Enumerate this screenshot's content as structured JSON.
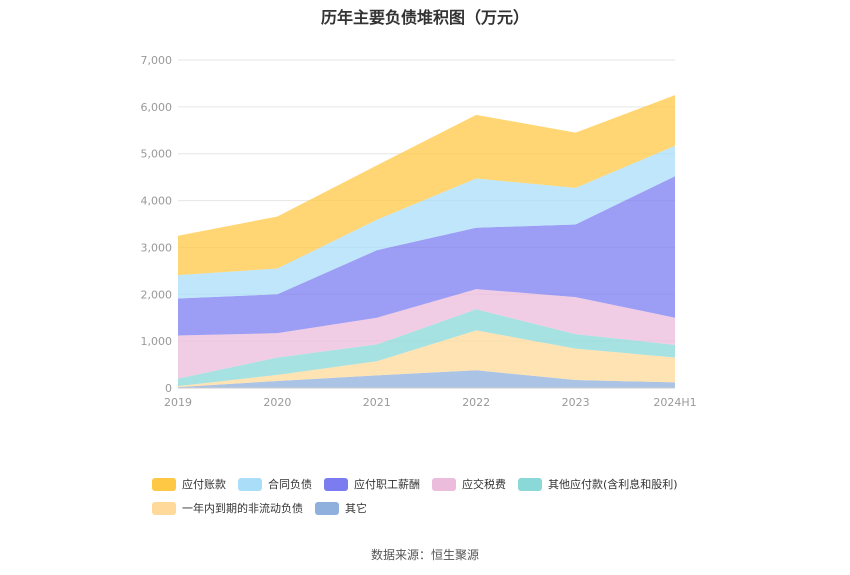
{
  "chart_data": {
    "type": "area",
    "stacked": true,
    "title": "历年主要负债堆积图（万元）",
    "categories": [
      "2019",
      "2020",
      "2021",
      "2022",
      "2023",
      "2024H1"
    ],
    "y_ticks": [
      "0",
      "1,000",
      "2,000",
      "3,000",
      "4,000",
      "5,000",
      "6,000",
      "7,000"
    ],
    "ylim": [
      0,
      7000
    ],
    "series": [
      {
        "name": "其它",
        "color": "#8fb0dc",
        "values": [
          20,
          150,
          270,
          380,
          170,
          120
        ]
      },
      {
        "name": "一年内到期的非流动负债",
        "color": "#ffd99a",
        "values": [
          20,
          130,
          300,
          850,
          670,
          530
        ]
      },
      {
        "name": "其他应付款(含利息和股利)",
        "color": "#8ad8d8",
        "values": [
          160,
          370,
          360,
          450,
          310,
          270
        ]
      },
      {
        "name": "应交税费",
        "color": "#ecbcdc",
        "values": [
          920,
          520,
          570,
          430,
          790,
          580
        ]
      },
      {
        "name": "应付职工薪酬",
        "color": "#7b7cf0",
        "values": [
          790,
          830,
          1440,
          1310,
          1550,
          3020
        ]
      },
      {
        "name": "合同负债",
        "color": "#aaddf8",
        "values": [
          500,
          550,
          650,
          1050,
          780,
          650
        ]
      },
      {
        "name": "应付账款",
        "color": "#ffc844",
        "values": [
          840,
          1110,
          1160,
          1360,
          1180,
          1080
        ]
      }
    ],
    "legend_order": [
      [
        "应付账款",
        "合同负债",
        "应付职工薪酬",
        "应交税费",
        "其他应付款(含利息和股利)"
      ],
      [
        "一年内到期的非流动负债",
        "其它"
      ]
    ]
  },
  "source_label": "数据来源：恒生聚源"
}
